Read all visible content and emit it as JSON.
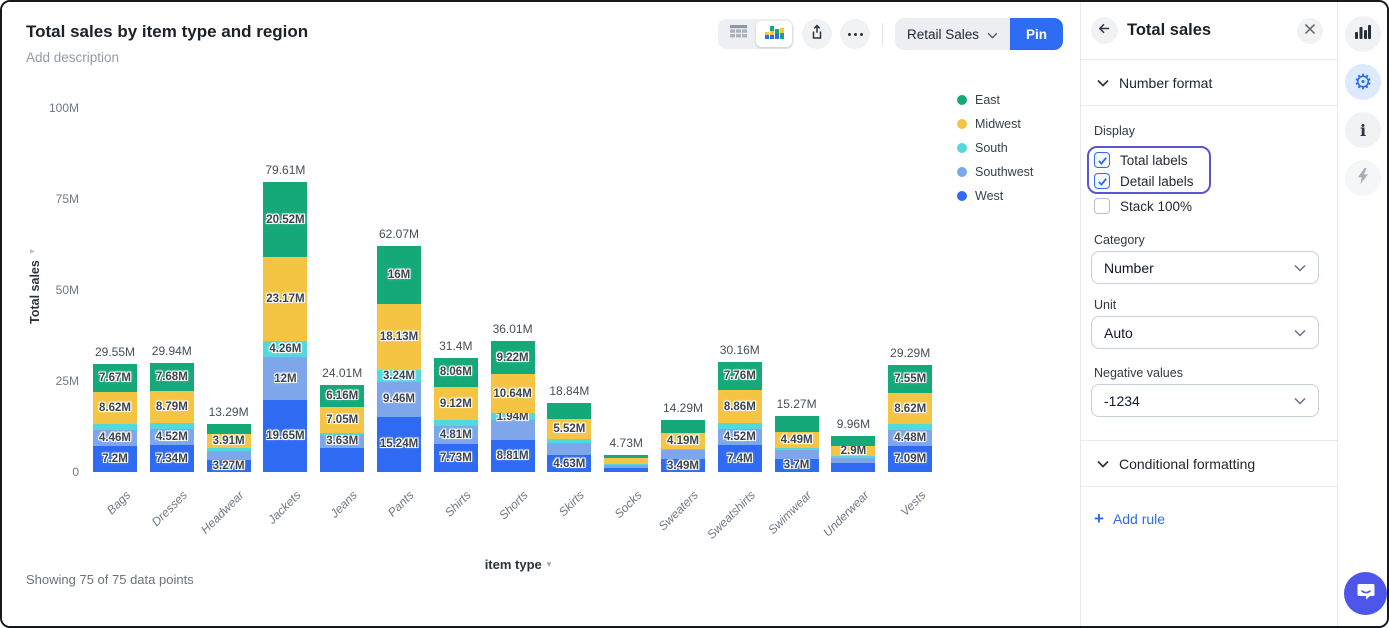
{
  "header": {
    "title": "Total sales by item type and region",
    "description": "Add description"
  },
  "toolbar": {
    "dataset_label": "Retail Sales",
    "pin_label": "Pin",
    "icons": [
      "table-view-icon",
      "chart-view-icon",
      "share-icon",
      "more-icon"
    ]
  },
  "chart_data": {
    "type": "bar",
    "stacked": true,
    "title": "Total sales by item type and region",
    "xlabel": "item type",
    "ylabel": "Total sales",
    "ylim": [
      0,
      100
    ],
    "grid": false,
    "legend_position": "right",
    "legend_order": [
      "East",
      "Midwest",
      "South",
      "Southwest",
      "West"
    ],
    "yticks": [
      {
        "label": "100M",
        "value": 100
      },
      {
        "label": "75M",
        "value": 75
      },
      {
        "label": "50M",
        "value": 50
      },
      {
        "label": "25M",
        "value": 25
      },
      {
        "label": "0",
        "value": 0
      }
    ],
    "categories": [
      "Bags",
      "Dresses",
      "Headwear",
      "Jackets",
      "Jeans",
      "Pants",
      "Shirts",
      "Shorts",
      "Skirts",
      "Socks",
      "Sweaters",
      "Sweatshirts",
      "Swimwear",
      "Underwear",
      "Vests"
    ],
    "total_labels": [
      "29.55M",
      "29.94M",
      "13.29M",
      "79.61M",
      "24.01M",
      "62.07M",
      "31.4M",
      "36.01M",
      "18.84M",
      "4.73M",
      "14.29M",
      "30.16M",
      "15.27M",
      "9.96M",
      "29.29M"
    ],
    "stack_order": "bottom-to-top",
    "series": [
      {
        "name": "West",
        "color": "#2e6af2",
        "values": [
          7.2,
          7.34,
          3.27,
          19.65,
          6.62,
          15.24,
          7.73,
          8.81,
          4.63,
          1.18,
          3.49,
          7.4,
          3.7,
          2.36,
          7.09
        ],
        "labels": [
          "7.2M",
          "7.34M",
          "3.27M",
          "19.65M",
          null,
          "15.24M",
          "7.73M",
          "8.81M",
          "4.63M",
          null,
          "3.49M",
          "7.4M",
          "3.7M",
          null,
          "7.09M"
        ]
      },
      {
        "name": "Southwest",
        "color": "#7ea6ea",
        "values": [
          4.46,
          4.52,
          2.6,
          12,
          3.63,
          9.46,
          4.81,
          5.4,
          3.3,
          0.9,
          2.51,
          4.52,
          2.38,
          1.6,
          4.48
        ],
        "labels": [
          "4.46M",
          "4.52M",
          null,
          "12M",
          "3.63M",
          "9.46M",
          "4.81M",
          null,
          null,
          null,
          null,
          "4.52M",
          null,
          null,
          "4.48M"
        ]
      },
      {
        "name": "South",
        "color": "#53d8dc",
        "values": [
          1.6,
          1.61,
          0.6,
          4.26,
          0.55,
          3.24,
          1.68,
          1.94,
          1.06,
          0.25,
          0.4,
          1.62,
          0.5,
          0.3,
          1.55
        ],
        "labels": [
          null,
          null,
          null,
          "4.26M",
          null,
          "3.24M",
          null,
          "1.94M",
          null,
          null,
          null,
          null,
          null,
          null,
          null
        ]
      },
      {
        "name": "Midwest",
        "color": "#f6c443",
        "values": [
          8.62,
          8.79,
          3.91,
          23.17,
          7.05,
          18.13,
          9.12,
          10.64,
          5.52,
          1.5,
          4.19,
          8.86,
          4.49,
          2.9,
          8.62
        ],
        "labels": [
          "8.62M",
          "8.79M",
          "3.91M",
          "23.17M",
          "7.05M",
          "18.13M",
          "9.12M",
          "10.64M",
          "5.52M",
          null,
          "4.19M",
          "8.86M",
          "4.49M",
          "2.9M",
          "8.62M"
        ]
      },
      {
        "name": "East",
        "color": "#15a878",
        "values": [
          7.67,
          7.68,
          2.91,
          20.52,
          6.16,
          16,
          8.06,
          9.22,
          4.33,
          0.9,
          3.7,
          7.76,
          4.2,
          2.8,
          7.55
        ],
        "labels": [
          "7.67M",
          "7.68M",
          null,
          "20.52M",
          "6.16M",
          "16M",
          "8.06M",
          "9.22M",
          null,
          null,
          null,
          "7.76M",
          null,
          null,
          "7.55M"
        ]
      }
    ]
  },
  "footer": {
    "showing": "Showing 75 of 75 data points"
  },
  "panel": {
    "title": "Total sales",
    "number_format_section": "Number format",
    "conditional_formatting_section": "Conditional formatting",
    "display": {
      "label": "Display",
      "options": [
        {
          "label": "Total labels",
          "checked": true
        },
        {
          "label": "Detail labels",
          "checked": true
        },
        {
          "label": "Stack 100%",
          "checked": false
        }
      ]
    },
    "category": {
      "label": "Category",
      "value": "Number"
    },
    "unit": {
      "label": "Unit",
      "value": "Auto"
    },
    "negative": {
      "label": "Negative values",
      "value": "-1234"
    },
    "add_rule_label": "Add rule"
  },
  "colors": {
    "accent_blue": "#2e6cf3",
    "highlight_ring": "#5956cf",
    "chat_bubble": "#4e56e9",
    "east": "#15a878",
    "midwest": "#f6c443",
    "south": "#53d8dc",
    "southwest": "#7ea6ea",
    "west": "#2e6af2"
  }
}
